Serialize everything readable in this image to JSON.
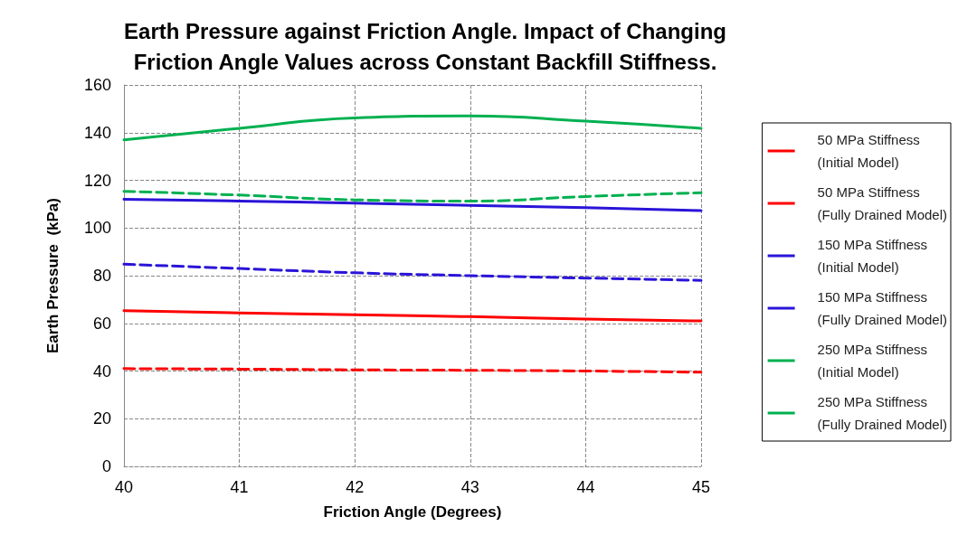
{
  "chart_data": {
    "type": "line",
    "title": "Earth Pressure against Friction Angle. Impact of Changing\nFriction Angle Values across Constant Backfill Stiffness.",
    "xlabel": "Friction Angle (Degrees)",
    "ylabel": "Earth Pressure  (kPa)",
    "x": [
      40,
      41,
      42,
      43,
      44,
      45
    ],
    "series": [
      {
        "name": "50 MPa Stiffness\n(Initial Model)",
        "color": "#ff0000",
        "line_style": "solid",
        "values": [
          65.3,
          64.4,
          63.6,
          62.8,
          61.8,
          61.0
        ]
      },
      {
        "name": "50 MPa Stiffness\n(Fully Drained Model)",
        "color": "#ff0000",
        "line_style": "dashed",
        "values": [
          41,
          40.8,
          40.5,
          40.3,
          40.0,
          39.5
        ]
      },
      {
        "name": "150 MPa Stiffness\n(Initial Model)",
        "color": "#2a14d8",
        "line_style": "solid",
        "values": [
          112,
          111.3,
          110.4,
          109.5,
          108.5,
          107.3
        ]
      },
      {
        "name": "150 MPa Stiffness\n(Fully Drained Model)",
        "color": "#2a14d8",
        "line_style": "dashed",
        "values": [
          84.8,
          83,
          81.2,
          80,
          79,
          78
        ]
      },
      {
        "name": "250 MPa Stiffness\n(Initial Model)",
        "color": "#00b050",
        "line_style": "solid",
        "values": [
          137,
          141.8,
          146.2,
          147,
          144.8,
          141.8
        ]
      },
      {
        "name": "250 MPa Stiffness\n(Fully Drained Model)",
        "color": "#00b050",
        "line_style": "dashed",
        "values": [
          115.4,
          113.8,
          111.8,
          111.3,
          113.2,
          114.8
        ]
      }
    ],
    "xlim": [
      40,
      45
    ],
    "xticks": [
      40,
      41,
      42,
      43,
      44,
      45
    ],
    "ylim": [
      0,
      160
    ],
    "yticks": [
      0,
      20,
      40,
      60,
      80,
      100,
      120,
      140,
      160
    ],
    "grid": true,
    "legend": "right",
    "marker": "none"
  }
}
